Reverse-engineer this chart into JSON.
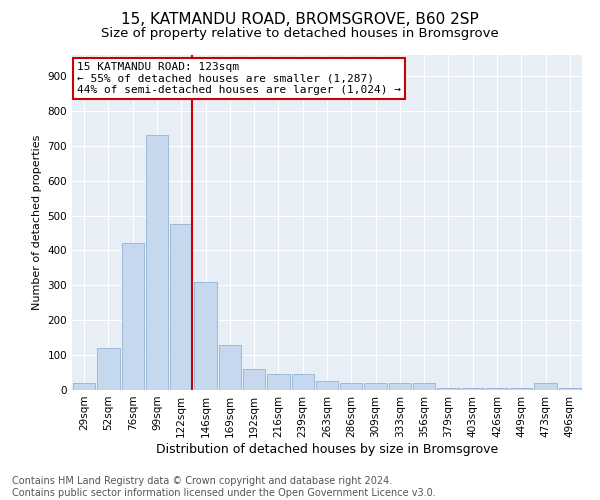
{
  "title": "15, KATMANDU ROAD, BROMSGROVE, B60 2SP",
  "subtitle": "Size of property relative to detached houses in Bromsgrove",
  "xlabel": "Distribution of detached houses by size in Bromsgrove",
  "ylabel": "Number of detached properties",
  "categories": [
    "29sqm",
    "52sqm",
    "76sqm",
    "99sqm",
    "122sqm",
    "146sqm",
    "169sqm",
    "192sqm",
    "216sqm",
    "239sqm",
    "263sqm",
    "286sqm",
    "309sqm",
    "333sqm",
    "356sqm",
    "379sqm",
    "403sqm",
    "426sqm",
    "449sqm",
    "473sqm",
    "496sqm"
  ],
  "values": [
    20,
    120,
    420,
    730,
    475,
    310,
    130,
    60,
    45,
    45,
    25,
    20,
    20,
    20,
    20,
    5,
    5,
    5,
    5,
    20,
    5
  ],
  "bar_color": "#c5d8ee",
  "bar_edge_color": "#92b4d4",
  "vline_color": "#cc0000",
  "annotation_text": "15 KATMANDU ROAD: 123sqm\n← 55% of detached houses are smaller (1,287)\n44% of semi-detached houses are larger (1,024) →",
  "annotation_box_color": "#cc0000",
  "bg_color": "#e8eef6",
  "grid_color": "#ffffff",
  "ylim": [
    0,
    960
  ],
  "yticks": [
    0,
    100,
    200,
    300,
    400,
    500,
    600,
    700,
    800,
    900
  ],
  "footnote": "Contains HM Land Registry data © Crown copyright and database right 2024.\nContains public sector information licensed under the Open Government Licence v3.0.",
  "title_fontsize": 11,
  "subtitle_fontsize": 9.5,
  "xlabel_fontsize": 9,
  "ylabel_fontsize": 8,
  "tick_fontsize": 7.5,
  "annotation_fontsize": 8,
  "footnote_fontsize": 7
}
